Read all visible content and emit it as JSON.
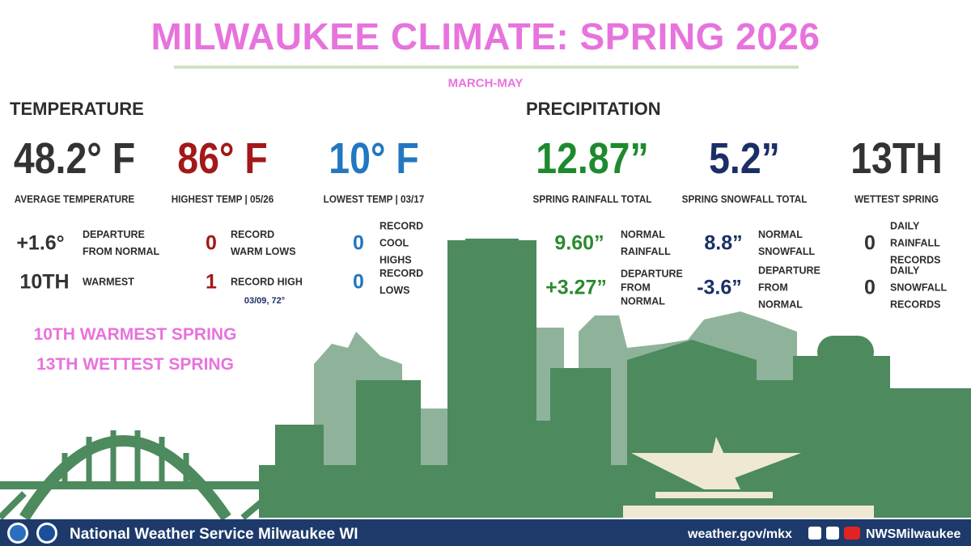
{
  "header": {
    "title": "MILWAUKEE CLIMATE: SPRING 2026",
    "subtitle": "MARCH-MAY"
  },
  "temperature": {
    "heading": "TEMPERATURE",
    "stats": [
      {
        "value": "48.2° F",
        "label": "AVERAGE TEMPERATURE"
      },
      {
        "value": "86° F",
        "label": "HIGHEST TEMP | 05/26"
      },
      {
        "value": "10° F",
        "label": "LOWEST TEMP | 03/17"
      }
    ],
    "details": [
      {
        "value": "+1.6°",
        "label": "DEPARTURE FROM NORMAL"
      },
      {
        "value": "10TH",
        "label": "WARMEST"
      },
      {
        "value": "0",
        "label": "RECORD WARM LOWS"
      },
      {
        "value": "1",
        "label": "RECORD HIGH",
        "note": "03/09, 72°"
      },
      {
        "value": "0",
        "label": "RECORD COOL HIGHS"
      },
      {
        "value": "0",
        "label": "RECORD LOWS"
      }
    ],
    "highlights": [
      "10TH WARMEST SPRING",
      "13TH WETTEST SPRING"
    ]
  },
  "precipitation": {
    "heading": "PRECIPITATION",
    "stats": [
      {
        "value": "12.87”",
        "label": "SPRING RAINFALL TOTAL"
      },
      {
        "value": "5.2”",
        "label": "SPRING SNOWFALL TOTAL"
      },
      {
        "value": "13TH",
        "label": "WETTEST SPRING"
      }
    ],
    "details": [
      {
        "value": "9.60”",
        "label": "NORMAL RAINFALL"
      },
      {
        "value": "+3.27”",
        "label": "DEPARTURE FROM NORMAL"
      },
      {
        "value": "8.8”",
        "label": "NORMAL SNOWFALL"
      },
      {
        "value": "-3.6”",
        "label": "DEPARTURE FROM NORMAL"
      },
      {
        "value": "0",
        "label": "DAILY RAINFALL RECORDS"
      },
      {
        "value": "0",
        "label": "DAILY SNOWFALL RECORDS"
      }
    ]
  },
  "footer": {
    "office": "National Weather Service Milwaukee WI",
    "website": "weather.gov/mkx",
    "social": "NWSMilwaukee"
  }
}
